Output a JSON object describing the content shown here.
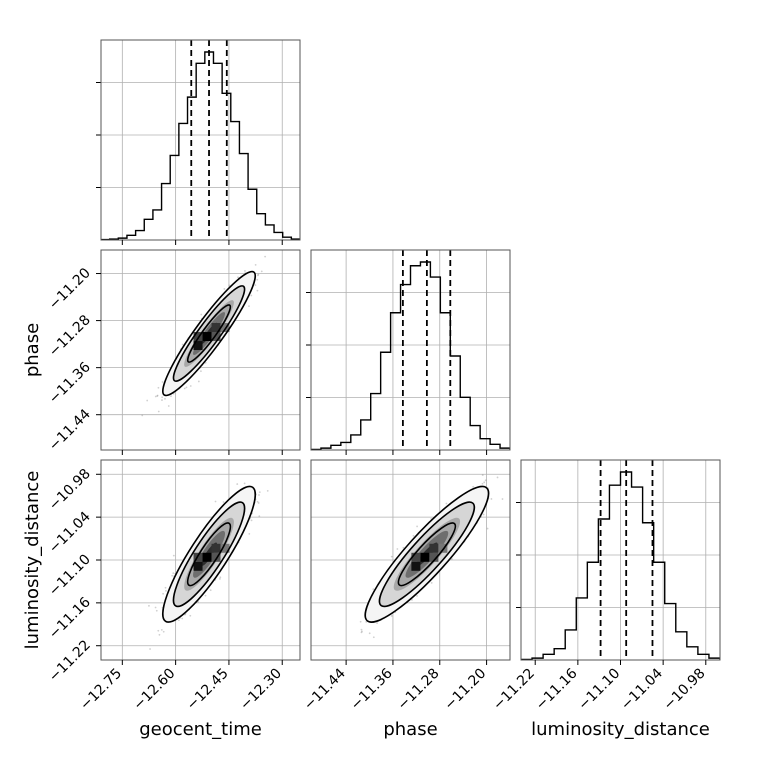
{
  "chart_data": {
    "type": "corner",
    "parameters": [
      "geocent_time",
      "phase",
      "luminosity_distance"
    ],
    "grid": true,
    "marginals": [
      {
        "name": "geocent_time",
        "range": [
          -12.81,
          -12.25
        ],
        "quantiles": [
          -12.556,
          -12.506,
          -12.456
        ],
        "ticks": [
          -12.75,
          -12.6,
          -12.45,
          -12.3
        ],
        "tick_labels": [
          "−12.75",
          "−12.60",
          "−12.45",
          "−12.30"
        ],
        "xlabel": "geocent_time",
        "hist": [
          0.002,
          0.005,
          0.01,
          0.025,
          0.05,
          0.11,
          0.16,
          0.3,
          0.45,
          0.62,
          0.76,
          0.94,
          1.0,
          0.94,
          0.78,
          0.63,
          0.46,
          0.27,
          0.14,
          0.08,
          0.04,
          0.015,
          0.005
        ]
      },
      {
        "name": "phase",
        "range": [
          -11.5,
          -11.16
        ],
        "quantiles": [
          -11.343,
          -11.302,
          -11.262
        ],
        "ticks": [
          -11.44,
          -11.36,
          -11.28,
          -11.2
        ],
        "tick_labels": [
          "−11.44",
          "−11.36",
          "−11.28",
          "−11.20"
        ],
        "xlabel": "phase",
        "hist": [
          0.003,
          0.01,
          0.025,
          0.04,
          0.08,
          0.16,
          0.3,
          0.52,
          0.73,
          0.88,
          0.98,
          1.0,
          0.92,
          0.73,
          0.5,
          0.28,
          0.13,
          0.06,
          0.03,
          0.01
        ]
      },
      {
        "name": "luminosity_distance",
        "range": [
          -11.24,
          -10.96
        ],
        "quantiles": [
          -11.128,
          -11.092,
          -11.055
        ],
        "ticks": [
          -11.22,
          -11.16,
          -11.1,
          -11.04,
          -10.98
        ],
        "tick_labels": [
          "−11.22",
          "−11.16",
          "−11.10",
          "−11.04",
          "−10.98"
        ],
        "xlabel": "luminosity_distance",
        "hist": [
          0.003,
          0.01,
          0.03,
          0.06,
          0.16,
          0.33,
          0.52,
          0.75,
          0.93,
          1.0,
          0.92,
          0.73,
          0.52,
          0.3,
          0.15,
          0.07,
          0.03,
          0.01
        ]
      }
    ],
    "pairs": [
      {
        "x": "geocent_time",
        "y": "phase",
        "rho": 0.93,
        "y_ticks": [
          -11.44,
          -11.36,
          -11.28,
          -11.2
        ],
        "y_tick_labels": [
          "−11.44",
          "−11.36",
          "−11.28",
          "−11.20"
        ],
        "ylabel": "phase"
      },
      {
        "x": "geocent_time",
        "y": "luminosity_distance",
        "rho": 0.88,
        "y_ticks": [
          -11.22,
          -11.16,
          -11.1,
          -11.04,
          -10.98
        ],
        "y_tick_labels": [
          "−11.22",
          "−11.16",
          "−11.10",
          "−11.04",
          "−10.98"
        ],
        "ylabel": "luminosity_distance"
      },
      {
        "x": "phase",
        "y": "luminosity_distance",
        "rho": 0.9
      }
    ],
    "colors": {
      "line": "#000000",
      "grid": "#b0b0b0",
      "points": "#777777"
    }
  }
}
